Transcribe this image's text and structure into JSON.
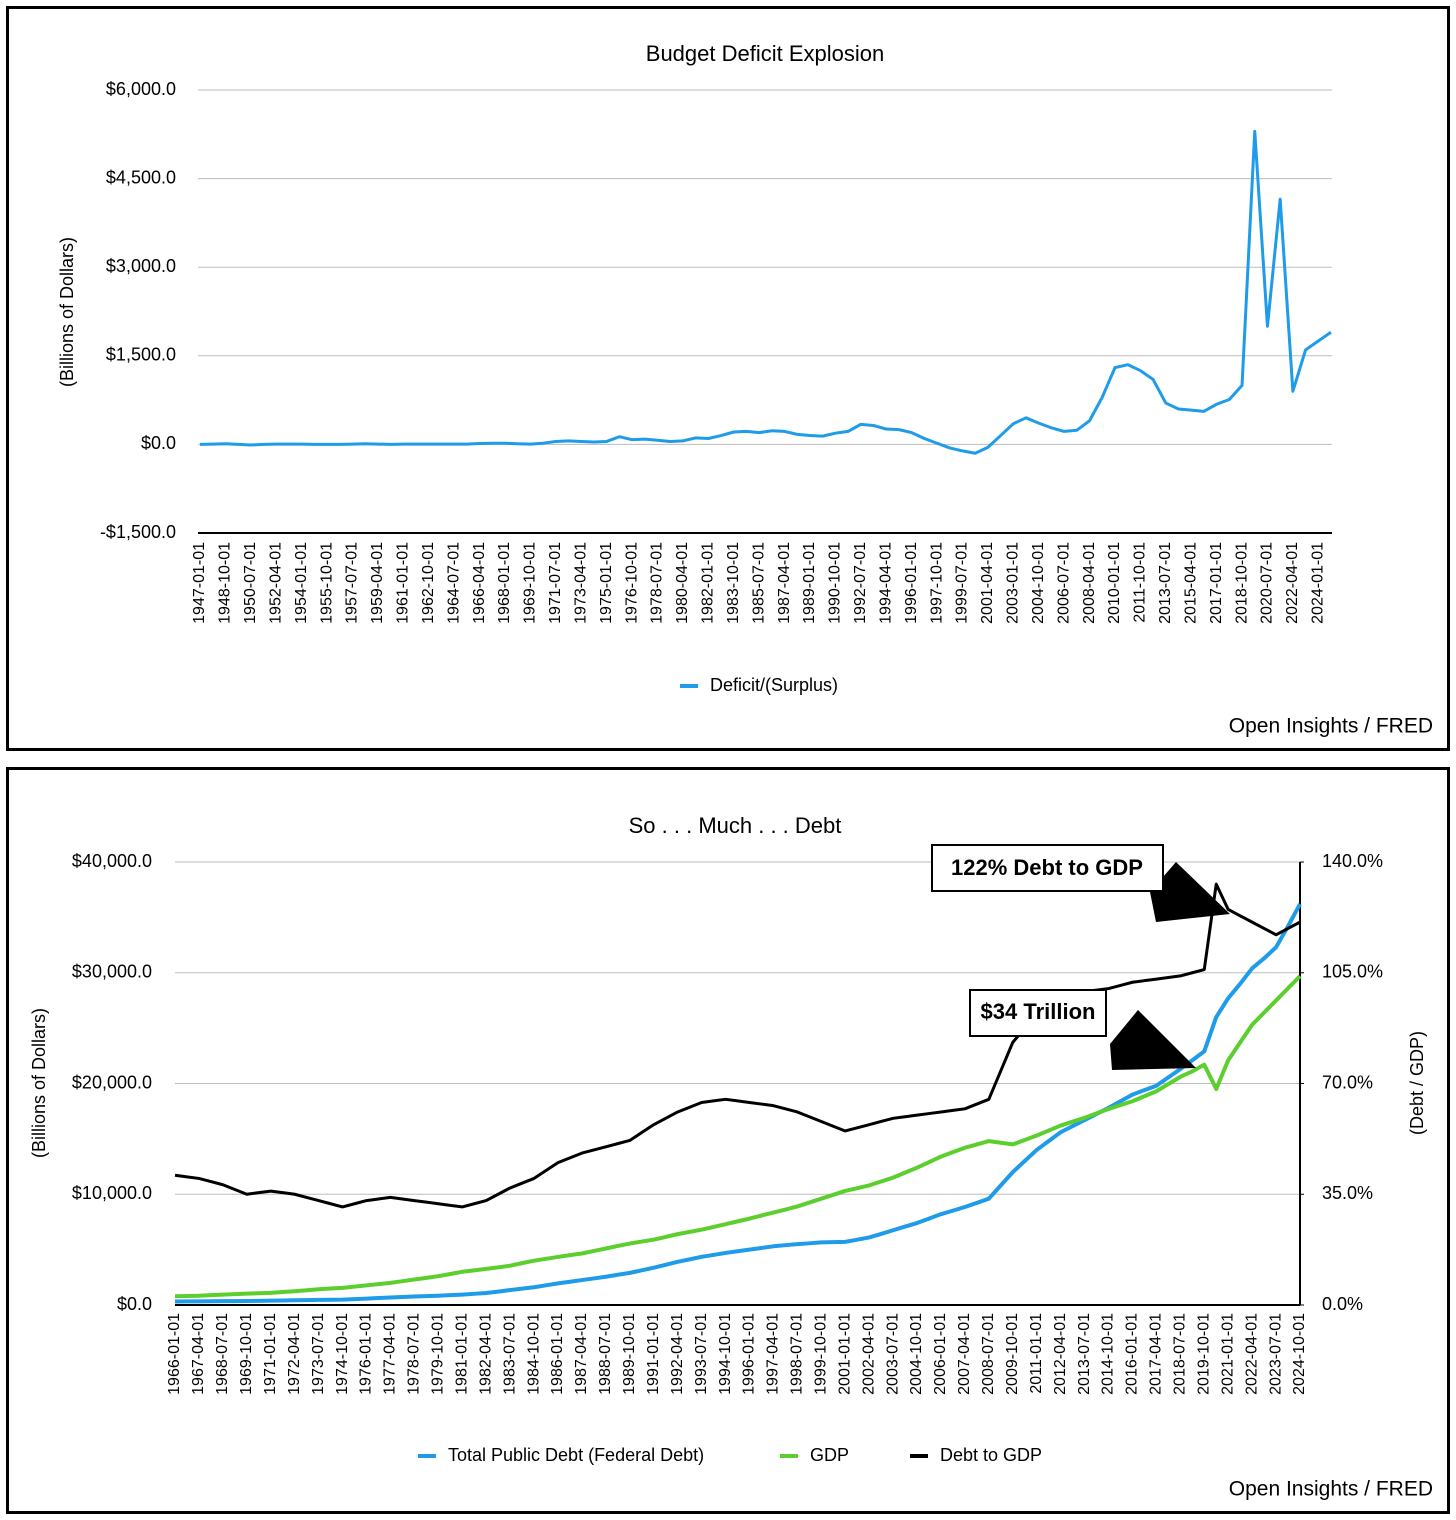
{
  "chart_data": [
    {
      "type": "line",
      "title": "Budget Deficit Explosion",
      "y_label": "(Billions of Dollars)",
      "source": "Open Insights / FRED",
      "categories": [
        "1947-01-01",
        null,
        "1948-10-01",
        null,
        "1950-07-01",
        null,
        "1952-04-01",
        null,
        "1954-01-01",
        null,
        "1955-10-01",
        null,
        "1957-07-01",
        null,
        "1959-04-01",
        null,
        "1961-01-01",
        null,
        "1962-10-01",
        null,
        "1964-07-01",
        null,
        "1966-04-01",
        null,
        "1968-01-01",
        null,
        "1969-10-01",
        null,
        "1971-07-01",
        null,
        "1973-04-01",
        null,
        "1975-01-01",
        null,
        "1976-10-01",
        null,
        "1978-07-01",
        null,
        "1980-04-01",
        null,
        "1982-01-01",
        null,
        "1983-10-01",
        null,
        "1985-07-01",
        null,
        "1987-04-01",
        null,
        "1989-01-01",
        null,
        "1990-10-01",
        null,
        "1992-07-01",
        null,
        "1994-04-01",
        null,
        "1996-01-01",
        null,
        "1997-10-01",
        null,
        "1999-07-01",
        null,
        "2001-04-01",
        null,
        "2003-01-01",
        null,
        "2004-10-01",
        null,
        "2006-07-01",
        null,
        "2008-04-01",
        null,
        "2010-01-01",
        null,
        "2011-10-01",
        null,
        "2013-07-01",
        null,
        "2015-04-01",
        null,
        "2017-01-01",
        null,
        "2018-10-01",
        null,
        "2020-07-01",
        null,
        "2022-04-01",
        null,
        "2024-01-01",
        null
      ],
      "series": [
        {
          "name": "Deficit/(Surplus)",
          "color": "#1e9be9",
          "values": [
            0,
            5,
            10,
            0,
            -10,
            0,
            5,
            5,
            5,
            0,
            0,
            0,
            5,
            10,
            5,
            0,
            5,
            5,
            5,
            5,
            5,
            5,
            15,
            20,
            20,
            10,
            5,
            20,
            50,
            60,
            50,
            40,
            50,
            130,
            80,
            90,
            70,
            50,
            60,
            110,
            100,
            150,
            210,
            220,
            200,
            230,
            220,
            170,
            150,
            140,
            190,
            220,
            340,
            320,
            260,
            250,
            200,
            100,
            20,
            -60,
            -110,
            -150,
            -50,
            150,
            350,
            450,
            360,
            280,
            220,
            240,
            400,
            800,
            1300,
            1350,
            1250,
            1100,
            700,
            600,
            580,
            560,
            680,
            760,
            1000,
            5300,
            2000,
            4150,
            900,
            1600,
            1750,
            1900
          ]
        }
      ],
      "ylim": [
        -1500,
        6000
      ],
      "yticks": [
        {
          "value": -1500,
          "label": "-$1,500.0"
        },
        {
          "value": 0,
          "label": "$0.0"
        },
        {
          "value": 1500,
          "label": "$1,500.0"
        },
        {
          "value": 3000,
          "label": "$3,000.0"
        },
        {
          "value": 4500,
          "label": "$4,500.0"
        },
        {
          "value": 6000,
          "label": "$6,000.0"
        }
      ],
      "grid": true,
      "legend": "bottom"
    },
    {
      "type": "line",
      "title": "So . . . Much . . . Debt",
      "y_label": "(Billions of Dollars)",
      "y2_label": "(Debt / GDP)",
      "source": "Open Insights / FRED",
      "annotations": [
        "122% Debt to GDP",
        "$34 Trillion"
      ],
      "categories": [
        "1966-01-01",
        null,
        "1967-04-01",
        null,
        "1968-07-01",
        null,
        "1969-10-01",
        null,
        "1971-01-01",
        null,
        "1972-04-01",
        null,
        "1973-07-01",
        null,
        "1974-10-01",
        null,
        "1976-01-01",
        null,
        "1977-04-01",
        null,
        "1978-07-01",
        null,
        "1979-10-01",
        null,
        "1981-01-01",
        null,
        "1982-04-01",
        null,
        "1983-07-01",
        null,
        "1984-10-01",
        null,
        "1986-01-01",
        null,
        "1987-04-01",
        null,
        "1988-07-01",
        null,
        "1989-10-01",
        null,
        "1991-01-01",
        null,
        "1992-04-01",
        null,
        "1993-07-01",
        null,
        "1994-10-01",
        null,
        "1996-01-01",
        null,
        "1997-04-01",
        null,
        "1998-07-01",
        null,
        "1999-10-01",
        null,
        "2001-01-01",
        null,
        "2002-04-01",
        null,
        "2003-07-01",
        null,
        "2004-10-01",
        null,
        "2006-01-01",
        null,
        "2007-04-01",
        null,
        "2008-07-01",
        null,
        "2009-10-01",
        null,
        "2011-01-01",
        null,
        "2012-04-01",
        null,
        "2013-07-01",
        null,
        "2014-10-01",
        null,
        "2016-01-01",
        null,
        "2017-04-01",
        null,
        "2018-07-01",
        null,
        "2019-10-01",
        null,
        "2021-01-01",
        null,
        "2022-04-01",
        null,
        "2023-07-01",
        null,
        "2024-10-01"
      ],
      "series": [
        {
          "name": "Total Public Debt (Federal Debt)",
          "color": "#1e9be9",
          "values": [
            320,
            325,
            330,
            340,
            350,
            355,
            360,
            375,
            390,
            410,
            430,
            445,
            460,
            470,
            480,
            530,
            580,
            630,
            680,
            725,
            770,
            805,
            840,
            890,
            940,
            1010,
            1080,
            1210,
            1350,
            1480,
            1600,
            1780,
            1950,
            2100,
            2250,
            2400,
            2550,
            2730,
            2900,
            3130,
            3370,
            3630,
            3900,
            4120,
            4350,
            4520,
            4700,
            4850,
            5000,
            5150,
            5300,
            5400,
            5500,
            5570,
            5650,
            5680,
            5700,
            5900,
            6100,
            6420,
            6750,
            7080,
            7400,
            7800,
            8200,
            8520,
            8850,
            9220,
            9600,
            10800,
            12000,
            13000,
            14000,
            14800,
            15600,
            16150,
            16700,
            17250,
            17800,
            18400,
            19000,
            19400,
            19800,
            20550,
            21300,
            22100,
            22900,
            26000,
            27700,
            29000,
            30400,
            31300,
            32300,
            34200,
            36200
          ]
        },
        {
          "name": "GDP",
          "color": "#5ccf2e",
          "values": [
            790,
            815,
            840,
            890,
            940,
            985,
            1030,
            1065,
            1100,
            1170,
            1240,
            1330,
            1420,
            1485,
            1550,
            1660,
            1770,
            1885,
            2000,
            2150,
            2300,
            2450,
            2600,
            2800,
            3000,
            3130,
            3260,
            3400,
            3550,
            3780,
            4000,
            4170,
            4340,
            4500,
            4650,
            4880,
            5100,
            5330,
            5550,
            5730,
            5900,
            6150,
            6400,
            6600,
            6800,
            7050,
            7300,
            7550,
            7800,
            8080,
            8350,
            8620,
            8900,
            9250,
            9600,
            9950,
            10300,
            10550,
            10800,
            11150,
            11500,
            11950,
            12400,
            12900,
            13400,
            13800,
            14200,
            14500,
            14800,
            14650,
            14500,
            14900,
            15300,
            15750,
            16200,
            16550,
            16900,
            17300,
            17700,
            18050,
            18400,
            18850,
            19300,
            19950,
            20600,
            21100,
            21700,
            19500,
            22100,
            23700,
            25300,
            26400,
            27500,
            28600,
            29700
          ]
        },
        {
          "name": "Debt to GDP",
          "color": "#000000",
          "axis": "y2",
          "values": [
            41,
            40.5,
            40,
            39,
            38,
            36.5,
            35,
            35.5,
            36,
            35.5,
            35,
            34,
            33,
            32,
            31,
            32,
            33,
            33.5,
            34,
            33.5,
            33,
            32.5,
            32,
            31.5,
            31,
            32,
            33,
            35,
            37,
            38.5,
            40,
            42.5,
            45,
            46.5,
            48,
            49,
            50,
            51,
            52,
            54.5,
            57,
            59,
            61,
            62.5,
            64,
            64.5,
            65,
            64.5,
            64,
            63.5,
            63,
            62,
            61,
            59.5,
            58,
            56.5,
            55,
            56,
            57,
            58,
            59,
            59.5,
            60,
            60.5,
            61,
            61.5,
            62,
            63.5,
            65,
            74,
            83,
            87.5,
            92,
            94.5,
            97,
            98,
            99,
            99.5,
            100,
            101,
            102,
            102.5,
            103,
            103.5,
            104,
            105,
            106,
            133,
            125,
            123,
            121,
            119,
            117,
            119,
            121
          ]
        }
      ],
      "ylim": [
        0,
        40000
      ],
      "yticks": [
        {
          "value": 0,
          "label": "$0.0"
        },
        {
          "value": 10000,
          "label": "$10,000.0"
        },
        {
          "value": 20000,
          "label": "$20,000.0"
        },
        {
          "value": 30000,
          "label": "$30,000.0"
        },
        {
          "value": 40000,
          "label": "$40,000.0"
        }
      ],
      "y2lim": [
        0,
        140
      ],
      "y2ticks": [
        {
          "value": 0,
          "label": "0.0%"
        },
        {
          "value": 35,
          "label": "35.0%"
        },
        {
          "value": 70,
          "label": "70.0%"
        },
        {
          "value": 105,
          "label": "105.0%"
        },
        {
          "value": 140,
          "label": "140.0%"
        }
      ],
      "grid": true,
      "legend": "bottom"
    }
  ]
}
